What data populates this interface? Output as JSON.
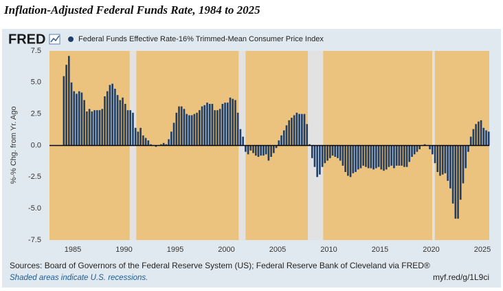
{
  "chart_data": {
    "type": "bar",
    "title": "Inflation-Adjusted Federal Funds Rate, 1984 to 2025",
    "logo": "FRED",
    "y_label": "%-% Chg. from Yr. Ago",
    "source": "Sources: Board of Governors of the Federal Reserve System (US); Federal Reserve Bank of Cleveland via FRED®",
    "note": "Shaded areas indicate U.S. recessions.",
    "short_url": "myf.red/g/1L9ci",
    "background": "#ebc27e",
    "recession_color": "#e2e2e2",
    "recessions": [
      [
        1990.55,
        1991.2
      ],
      [
        2001.2,
        2001.87
      ],
      [
        2007.95,
        2009.45
      ],
      [
        2020.1,
        2020.35
      ]
    ],
    "xlim": [
      1982.72,
      2025.67
    ],
    "xticks": [
      1985,
      1990,
      1995,
      2000,
      2005,
      2010,
      2015,
      2020,
      2025
    ],
    "ylim": [
      -7.5,
      7.5
    ],
    "yticks": [
      {
        "value": 7.5,
        "label": "7.5"
      },
      {
        "value": 5,
        "label": "5.0"
      },
      {
        "value": 2.5,
        "label": "2.5"
      },
      {
        "value": 0,
        "label": "0.0"
      },
      {
        "value": -2.5,
        "label": "-2.5"
      },
      {
        "value": -5,
        "label": "-5.0"
      },
      {
        "value": -7.5,
        "label": "-7.5"
      }
    ],
    "grid": false,
    "x": [
      1984.12,
      1984.37,
      1984.62,
      1984.87,
      1985.12,
      1985.37,
      1985.62,
      1985.87,
      1986.12,
      1986.37,
      1986.62,
      1986.87,
      1987.12,
      1987.37,
      1987.62,
      1987.87,
      1988.12,
      1988.37,
      1988.62,
      1988.87,
      1989.12,
      1989.37,
      1989.62,
      1989.87,
      1990.12,
      1990.37,
      1990.62,
      1990.87,
      1991.12,
      1991.37,
      1991.62,
      1991.87,
      1992.12,
      1992.37,
      1992.62,
      1992.87,
      1993.12,
      1993.37,
      1993.62,
      1993.87,
      1994.12,
      1994.37,
      1994.62,
      1994.87,
      1995.12,
      1995.37,
      1995.62,
      1995.87,
      1996.12,
      1996.37,
      1996.62,
      1996.87,
      1997.12,
      1997.37,
      1997.62,
      1997.87,
      1998.12,
      1998.37,
      1998.62,
      1998.87,
      1999.12,
      1999.37,
      1999.62,
      1999.87,
      2000.12,
      2000.37,
      2000.62,
      2000.87,
      2001.12,
      2001.37,
      2001.62,
      2001.87,
      2002.12,
      2002.37,
      2002.62,
      2002.87,
      2003.12,
      2003.37,
      2003.62,
      2003.87,
      2004.12,
      2004.37,
      2004.62,
      2004.87,
      2005.12,
      2005.37,
      2005.62,
      2005.87,
      2006.12,
      2006.37,
      2006.62,
      2006.87,
      2007.12,
      2007.37,
      2007.62,
      2007.87,
      2008.12,
      2008.37,
      2008.62,
      2008.87,
      2009.12,
      2009.37,
      2009.62,
      2009.87,
      2010.12,
      2010.37,
      2010.62,
      2010.87,
      2011.12,
      2011.37,
      2011.62,
      2011.87,
      2012.12,
      2012.37,
      2012.62,
      2012.87,
      2013.12,
      2013.37,
      2013.62,
      2013.87,
      2014.12,
      2014.37,
      2014.62,
      2014.87,
      2015.12,
      2015.37,
      2015.62,
      2015.87,
      2016.12,
      2016.37,
      2016.62,
      2016.87,
      2017.12,
      2017.37,
      2017.62,
      2017.87,
      2018.12,
      2018.37,
      2018.62,
      2018.87,
      2019.12,
      2019.37,
      2019.62,
      2019.87,
      2020.12,
      2020.37,
      2020.62,
      2020.87,
      2021.12,
      2021.37,
      2021.62,
      2021.87,
      2022.12,
      2022.37,
      2022.62,
      2022.87,
      2023.12,
      2023.37,
      2023.62,
      2023.87,
      2024.12,
      2024.37,
      2024.62,
      2024.87,
      2025.12,
      2025.37,
      2025.62
    ],
    "series": [
      {
        "name": "Federal Funds Effective Rate-16% Trimmed-Mean Consumer Price Index",
        "color": "#1f3f6b",
        "values": [
          5.5,
          6.4,
          7.1,
          5.0,
          4.3,
          4.1,
          4.3,
          4.2,
          3.6,
          2.7,
          2.9,
          2.7,
          2.8,
          2.8,
          2.8,
          2.9,
          3.9,
          4.3,
          4.8,
          4.9,
          4.5,
          4.0,
          3.6,
          3.8,
          3.3,
          2.8,
          2.8,
          2.6,
          1.4,
          1.1,
          1.4,
          0.8,
          0.6,
          0.4,
          0.1,
          0.0,
          -0.1,
          0.0,
          0.1,
          0.2,
          0.1,
          0.5,
          1.1,
          1.8,
          2.6,
          3.1,
          3.1,
          2.9,
          2.5,
          2.4,
          2.4,
          2.5,
          2.6,
          2.8,
          3.1,
          3.2,
          3.4,
          3.3,
          3.3,
          2.8,
          2.8,
          2.9,
          3.3,
          3.4,
          3.4,
          3.8,
          3.7,
          3.6,
          2.6,
          1.3,
          0.7,
          -0.5,
          -0.7,
          -0.4,
          -0.6,
          -0.8,
          -0.9,
          -0.8,
          -0.8,
          -0.7,
          -1.2,
          -0.9,
          -0.6,
          -0.2,
          0.4,
          0.8,
          1.2,
          1.6,
          2.0,
          2.2,
          2.4,
          2.6,
          2.5,
          2.5,
          2.5,
          1.7,
          0.1,
          -1.0,
          -1.7,
          -2.5,
          -2.3,
          -1.7,
          -1.4,
          -1.2,
          -1.0,
          -0.8,
          -0.9,
          -1.0,
          -1.2,
          -1.6,
          -2.1,
          -2.4,
          -2.5,
          -2.2,
          -2.1,
          -1.9,
          -1.8,
          -1.6,
          -1.7,
          -1.8,
          -1.8,
          -1.9,
          -1.8,
          -1.7,
          -1.9,
          -2.0,
          -1.9,
          -1.7,
          -1.6,
          -1.8,
          -1.6,
          -1.6,
          -1.6,
          -1.7,
          -1.7,
          -1.3,
          -0.9,
          -0.7,
          -0.5,
          -0.3,
          0.0,
          0.1,
          0.0,
          -0.3,
          -0.7,
          -1.4,
          -2.1,
          -2.4,
          -2.3,
          -2.2,
          -2.8,
          -3.4,
          -4.6,
          -5.8,
          -5.8,
          -4.3,
          -3.0,
          -1.8,
          -0.5,
          0.7,
          1.3,
          1.7,
          1.9,
          2.0,
          1.4,
          1.2,
          1.1
        ]
      }
    ]
  }
}
